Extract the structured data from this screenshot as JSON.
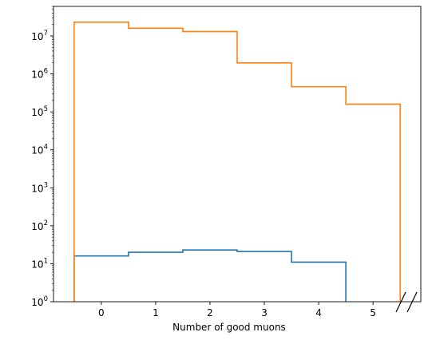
{
  "chart_data": {
    "type": "step-histogram",
    "title": "",
    "xlabel": "Number of good muons",
    "ylabel": "",
    "yscale": "log",
    "xlim": [
      -0.88,
      5.88
    ],
    "ylim": [
      1,
      60000000
    ],
    "x_ticks": [
      {
        "value": 0,
        "label": "0"
      },
      {
        "value": 1,
        "label": "1"
      },
      {
        "value": 2,
        "label": "2"
      },
      {
        "value": 3,
        "label": "3"
      },
      {
        "value": 4,
        "label": "4"
      },
      {
        "value": 5,
        "label": "5"
      }
    ],
    "y_ticks": [
      {
        "value": 1,
        "base": "10",
        "exp": "0"
      },
      {
        "value": 10,
        "base": "10",
        "exp": "1"
      },
      {
        "value": 100,
        "base": "10",
        "exp": "2"
      },
      {
        "value": 1000,
        "base": "10",
        "exp": "3"
      },
      {
        "value": 10000,
        "base": "10",
        "exp": "4"
      },
      {
        "value": 100000,
        "base": "10",
        "exp": "5"
      },
      {
        "value": 1000000,
        "base": "10",
        "exp": "6"
      },
      {
        "value": 10000000,
        "base": "10",
        "exp": "7"
      }
    ],
    "grid": false,
    "axis_break": "bottom-right",
    "series": [
      {
        "color": "#1f77b4",
        "bin_edges": [
          -0.5,
          0.5,
          1.5,
          2.5,
          3.5,
          4.5
        ],
        "values": [
          16,
          20,
          23,
          21,
          11
        ]
      },
      {
        "color": "#ff7f0e",
        "bin_edges": [
          -0.5,
          0.5,
          1.5,
          2.5,
          3.5,
          4.5,
          5.5
        ],
        "values": [
          23000000,
          16000000,
          13000000,
          1950000,
          460000,
          160000
        ]
      }
    ]
  }
}
